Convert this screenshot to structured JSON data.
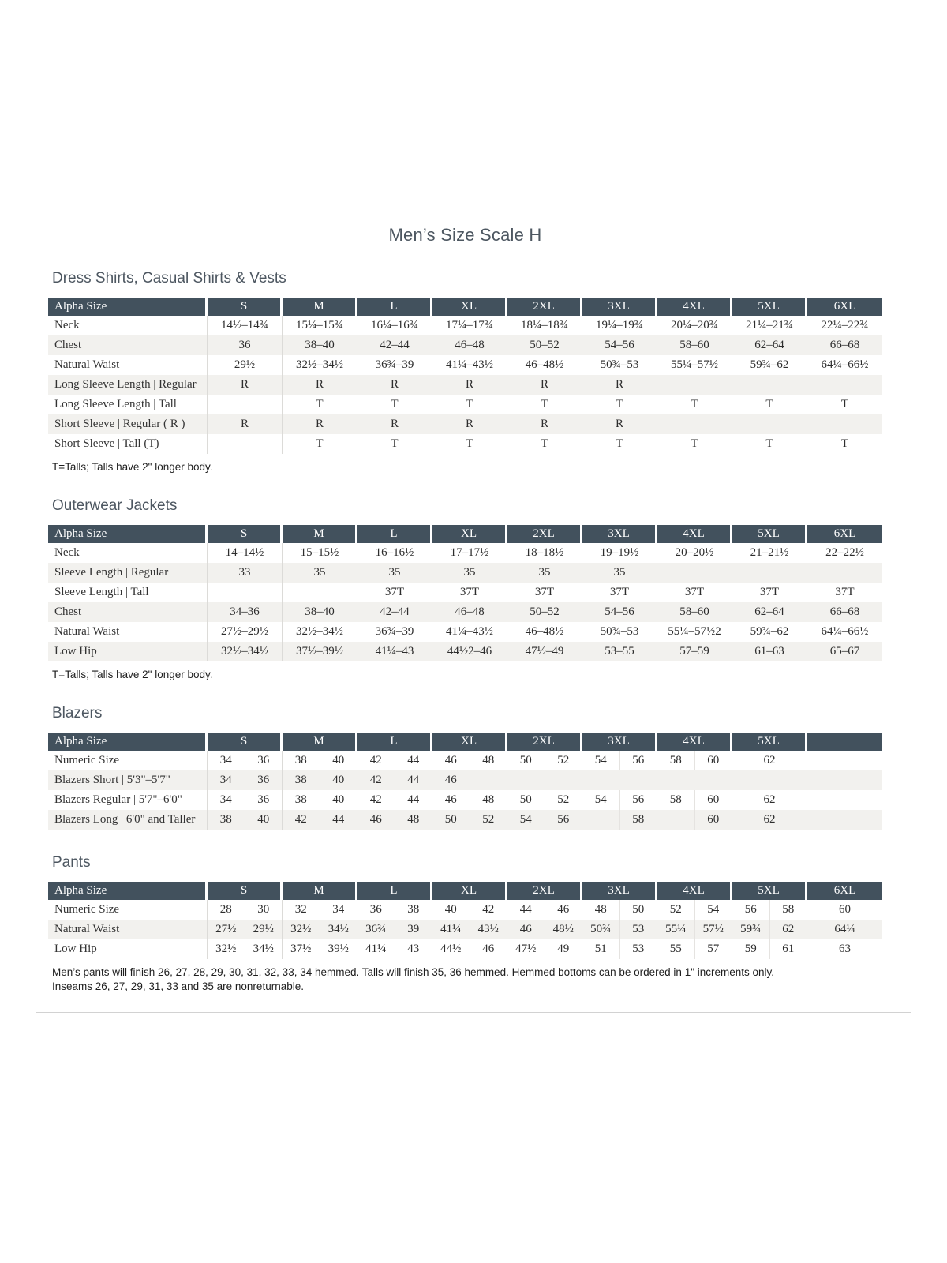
{
  "page": {
    "title": "Men’s Size Scale H"
  },
  "colors": {
    "table_header_bg": "#42515d",
    "table_header_text": "#ffffff",
    "zebra_row_bg": "#f2f1ee",
    "heading_text": "#4d5761",
    "page_border": "#d2d2d2"
  },
  "tables": [
    {
      "id": "dress-shirts",
      "section_title": "Dress Shirts, Casual Shirts & Vests",
      "split": false,
      "columns": [
        "Alpha Size",
        "S",
        "M",
        "L",
        "XL",
        "2XL",
        "3XL",
        "4XL",
        "5XL",
        "6XL"
      ],
      "rows": [
        {
          "label": "Neck",
          "cells": [
            "14½–14¾",
            "15¼–15¾",
            "16¼–16¾",
            "17¼–17¾",
            "18¼–18¾",
            "19¼–19¾",
            "20¼–20¾",
            "21¼–21¾",
            "22¼–22¾"
          ]
        },
        {
          "label": "Chest",
          "cells": [
            "36",
            "38–40",
            "42–44",
            "46–48",
            "50–52",
            "54–56",
            "58–60",
            "62–64",
            "66–68"
          ]
        },
        {
          "label": "Natural Waist",
          "cells": [
            "29½",
            "32½–34½",
            "36¾–39",
            "41¼–43½",
            "46–48½",
            "50¾–53",
            "55¼–57½",
            "59¾–62",
            "64¼–66½"
          ]
        },
        {
          "label": "Long Sleeve Length  |  Regular",
          "cells": [
            "R",
            "R",
            "R",
            "R",
            "R",
            "R",
            "",
            "",
            ""
          ]
        },
        {
          "label": "Long Sleeve Length  |  Tall",
          "cells": [
            "",
            "T",
            "T",
            "T",
            "T",
            "T",
            "T",
            "T",
            "T"
          ]
        },
        {
          "label": "Short Sleeve  |  Regular ( R )",
          "cells": [
            "R",
            "R",
            "R",
            "R",
            "R",
            "R",
            "",
            "",
            ""
          ]
        },
        {
          "label": "Short Sleeve  |  Tall (T)",
          "cells": [
            "",
            "T",
            "T",
            "T",
            "T",
            "T",
            "T",
            "T",
            "T"
          ]
        }
      ],
      "footnote": "T=Talls; Talls have 2\" longer body."
    },
    {
      "id": "outerwear-jackets",
      "section_title": "Outerwear Jackets",
      "split": false,
      "columns": [
        "Alpha Size",
        "S",
        "M",
        "L",
        "XL",
        "2XL",
        "3XL",
        "4XL",
        "5XL",
        "6XL"
      ],
      "rows": [
        {
          "label": "Neck",
          "cells": [
            "14–14½",
            "15–15½",
            "16–16½",
            "17–17½",
            "18–18½",
            "19–19½",
            "20–20½",
            "21–21½",
            "22–22½"
          ]
        },
        {
          "label": "Sleeve Length  |  Regular",
          "cells": [
            "33",
            "35",
            "35",
            "35",
            "35",
            "35",
            "",
            "",
            ""
          ]
        },
        {
          "label": "Sleeve Length  |  Tall",
          "cells": [
            "",
            "",
            "37T",
            "37T",
            "37T",
            "37T",
            "37T",
            "37T",
            "37T"
          ]
        },
        {
          "label": "Chest",
          "cells": [
            "34–36",
            "38–40",
            "42–44",
            "46–48",
            "50–52",
            "54–56",
            "58–60",
            "62–64",
            "66–68"
          ]
        },
        {
          "label": "Natural Waist",
          "cells": [
            "27½–29½",
            "32½–34½",
            "36¾–39",
            "41¼–43½",
            "46–48½",
            "50¾–53",
            "55¼–57½2",
            "59¾–62",
            "64¼–66½"
          ]
        },
        {
          "label": "Low Hip",
          "cells": [
            "32½–34½",
            "37½–39½",
            "41¼–43",
            "44½2–46",
            "47½–49",
            "53–55",
            "57–59",
            "61–63",
            "65–67"
          ]
        }
      ],
      "footnote": "T=Talls; Talls have 2\" longer body."
    },
    {
      "id": "blazers",
      "section_title": "Blazers",
      "split": true,
      "columns": [
        "Alpha Size",
        "S",
        "M",
        "L",
        "XL",
        "2XL",
        "3XL",
        "4XL",
        "5XL",
        ""
      ],
      "rows": [
        {
          "label": "Numeric Size",
          "cells": [
            [
              "34",
              "36"
            ],
            [
              "38",
              "40"
            ],
            [
              "42",
              "44"
            ],
            [
              "46",
              "48"
            ],
            [
              "50",
              "52"
            ],
            [
              "54",
              "56"
            ],
            [
              "58",
              "60"
            ],
            "62",
            ""
          ]
        },
        {
          "label": "Blazers Short  |  5'3\"–5'7\"",
          "cells": [
            [
              "34",
              "36"
            ],
            [
              "38",
              "40"
            ],
            [
              "42",
              "44"
            ],
            [
              "46",
              ""
            ],
            "",
            "",
            "",
            "",
            ""
          ]
        },
        {
          "label": "Blazers Regular  |  5'7\"–6'0\"",
          "cells": [
            [
              "34",
              "36"
            ],
            [
              "38",
              "40"
            ],
            [
              "42",
              "44"
            ],
            [
              "46",
              "48"
            ],
            [
              "50",
              "52"
            ],
            [
              "54",
              "56"
            ],
            [
              "58",
              "60"
            ],
            "62",
            ""
          ]
        },
        {
          "label": "Blazers Long  |  6'0\" and Taller",
          "cells": [
            [
              "38",
              "40"
            ],
            [
              "42",
              "44"
            ],
            [
              "46",
              "48"
            ],
            [
              "50",
              "52"
            ],
            [
              "54",
              "56"
            ],
            [
              "",
              "58"
            ],
            [
              "",
              "60"
            ],
            "62",
            ""
          ]
        }
      ],
      "footnote": ""
    },
    {
      "id": "pants",
      "section_title": "Pants",
      "split": true,
      "columns": [
        "Alpha Size",
        "S",
        "M",
        "L",
        "XL",
        "2XL",
        "3XL",
        "4XL",
        "5XL",
        "6XL"
      ],
      "rows": [
        {
          "label": "Numeric Size",
          "cells": [
            [
              "28",
              "30"
            ],
            [
              "32",
              "34"
            ],
            [
              "36",
              "38"
            ],
            [
              "40",
              "42"
            ],
            [
              "44",
              "46"
            ],
            [
              "48",
              "50"
            ],
            [
              "52",
              "54"
            ],
            [
              "56",
              "58"
            ],
            "60"
          ]
        },
        {
          "label": "Natural Waist",
          "cells": [
            [
              "27½",
              "29½"
            ],
            [
              "32½",
              "34½"
            ],
            [
              "36¾",
              "39"
            ],
            [
              "41¼",
              "43½"
            ],
            [
              "46",
              "48½"
            ],
            [
              "50¾",
              "53"
            ],
            [
              "55¼",
              "57½"
            ],
            [
              "59¾",
              "62"
            ],
            "64¼"
          ]
        },
        {
          "label": "Low Hip",
          "cells": [
            [
              "32½",
              "34½"
            ],
            [
              "37½",
              "39½"
            ],
            [
              "41¼",
              "43"
            ],
            [
              "44½",
              "46"
            ],
            [
              "47½",
              "49"
            ],
            [
              "51",
              "53"
            ],
            [
              "55",
              "57"
            ],
            [
              "59",
              "61"
            ],
            "63"
          ]
        }
      ],
      "footnote": ""
    }
  ],
  "bottom_notes": {
    "line1": "Men’s pants will finish 26, 27, 28, 29, 30, 31, 32, 33, 34 hemmed. Talls will finish 35, 36 hemmed. Hemmed bottoms can be ordered in 1\" increments only.",
    "line2": "Inseams 26, 27, 29, 31, 33 and 35 are nonreturnable."
  }
}
